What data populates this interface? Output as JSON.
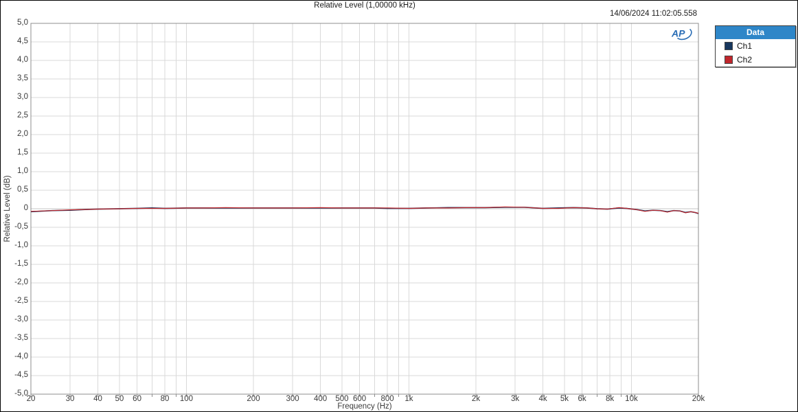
{
  "header": {
    "title": "Relative Level (1,00000 kHz)",
    "timestamp": "14/06/2024 11:02:05.558"
  },
  "logo": {
    "text": "AP",
    "color": "#2a6db5"
  },
  "legend": {
    "header": "Data",
    "header_bg": "#2e86c8",
    "header_text_color": "#ffffff",
    "items": [
      {
        "label": "Ch1",
        "color": "#17375e"
      },
      {
        "label": "Ch2",
        "color": "#c0262c"
      }
    ]
  },
  "colors": {
    "grid": "#d9d9d9",
    "zero_line": "#c6c6c6",
    "frame": "#8c8c8c",
    "tick": "#8c8c8c",
    "text": "#3a3a3a",
    "background": "#ffffff",
    "page_border": "#000000"
  },
  "chart_data": {
    "type": "line",
    "title": "Relative Level (1,00000 kHz)",
    "xlabel": "Frequency (Hz)",
    "ylabel": "Relative Level (dB)",
    "xscale": "log",
    "xlim": [
      20,
      20000
    ],
    "ylim": [
      -5,
      5
    ],
    "grid": true,
    "legend_position": "outside-right",
    "x_ticks": [
      {
        "value": 20,
        "label": "20"
      },
      {
        "value": 30,
        "label": "30"
      },
      {
        "value": 40,
        "label": "40"
      },
      {
        "value": 50,
        "label": "50"
      },
      {
        "value": 60,
        "label": "60"
      },
      {
        "value": 80,
        "label": "80"
      },
      {
        "value": 100,
        "label": "100"
      },
      {
        "value": 200,
        "label": "200"
      },
      {
        "value": 300,
        "label": "300"
      },
      {
        "value": 400,
        "label": "400"
      },
      {
        "value": 500,
        "label": "500"
      },
      {
        "value": 600,
        "label": "600"
      },
      {
        "value": 800,
        "label": "800"
      },
      {
        "value": 1000,
        "label": "1k"
      },
      {
        "value": 2000,
        "label": "2k"
      },
      {
        "value": 3000,
        "label": "3k"
      },
      {
        "value": 4000,
        "label": "4k"
      },
      {
        "value": 5000,
        "label": "5k"
      },
      {
        "value": 6000,
        "label": "6k"
      },
      {
        "value": 8000,
        "label": "8k"
      },
      {
        "value": 10000,
        "label": "10k"
      },
      {
        "value": 20000,
        "label": "20k"
      }
    ],
    "y_ticks": [
      {
        "value": 5.0,
        "label": "5,0"
      },
      {
        "value": 4.5,
        "label": "4,5"
      },
      {
        "value": 4.0,
        "label": "4,0"
      },
      {
        "value": 3.5,
        "label": "3,5"
      },
      {
        "value": 3.0,
        "label": "3,0"
      },
      {
        "value": 2.5,
        "label": "2,5"
      },
      {
        "value": 2.0,
        "label": "2,0"
      },
      {
        "value": 1.5,
        "label": "1,5"
      },
      {
        "value": 1.0,
        "label": "1,0"
      },
      {
        "value": 0.5,
        "label": "0,5"
      },
      {
        "value": 0.0,
        "label": "0"
      },
      {
        "value": -0.5,
        "label": "-0,5"
      },
      {
        "value": -1.0,
        "label": "-1,0"
      },
      {
        "value": -1.5,
        "label": "-1,5"
      },
      {
        "value": -2.0,
        "label": "-2,0"
      },
      {
        "value": -2.5,
        "label": "-2,5"
      },
      {
        "value": -3.0,
        "label": "-3,0"
      },
      {
        "value": -3.5,
        "label": "-3,5"
      },
      {
        "value": -4.0,
        "label": "-4,0"
      },
      {
        "value": -4.5,
        "label": "-4,5"
      },
      {
        "value": -5.0,
        "label": "-5,0"
      }
    ],
    "series": [
      {
        "name": "Ch1",
        "color": "#17375e",
        "x": [
          20,
          25,
          30,
          35,
          40,
          50,
          60,
          70,
          80,
          100,
          120,
          150,
          200,
          250,
          300,
          400,
          500,
          600,
          700,
          800,
          1000,
          1200,
          1500,
          1800,
          2200,
          2700,
          3300,
          4000,
          4700,
          5500,
          6300,
          7000,
          7800,
          8800,
          9500,
          10500,
          11500,
          12500,
          13500,
          14500,
          15500,
          16500,
          17500,
          18500,
          19300,
          20000
        ],
        "y": [
          -0.08,
          -0.05,
          -0.04,
          -0.02,
          -0.01,
          0,
          0.01,
          0.02,
          0.01,
          0.02,
          0.02,
          0.02,
          0.02,
          0.02,
          0.02,
          0.02,
          0.02,
          0.02,
          0.02,
          0.01,
          0.01,
          0.02,
          0.03,
          0.03,
          0.03,
          0.04,
          0.04,
          0.01,
          0.02,
          0.03,
          0.02,
          0,
          -0.01,
          0.02,
          0.01,
          -0.02,
          -0.06,
          -0.04,
          -0.05,
          -0.08,
          -0.05,
          -0.06,
          -0.1,
          -0.08,
          -0.1,
          -0.13
        ]
      },
      {
        "name": "Ch2",
        "color": "#c0262c",
        "x": [
          20,
          25,
          30,
          35,
          40,
          50,
          60,
          70,
          80,
          100,
          120,
          150,
          200,
          250,
          300,
          400,
          500,
          600,
          700,
          800,
          1000,
          1200,
          1500,
          1800,
          2200,
          2700,
          3300,
          4000,
          4700,
          5500,
          6300,
          7000,
          7800,
          8800,
          9500,
          10500,
          11500,
          12500,
          13500,
          14500,
          15500,
          16500,
          17500,
          18500,
          19300,
          20000
        ],
        "y": [
          -0.07,
          -0.05,
          -0.03,
          -0.02,
          -0.01,
          0,
          0.01,
          0.01,
          0.01,
          0.02,
          0.02,
          0.03,
          0.02,
          0.02,
          0.02,
          0.03,
          0.02,
          0.02,
          0.02,
          0.02,
          0.01,
          0.02,
          0.02,
          0.03,
          0.03,
          0.05,
          0.04,
          0.01,
          0.01,
          0.03,
          0.02,
          0,
          -0.01,
          0.03,
          0.01,
          -0.02,
          -0.07,
          -0.04,
          -0.05,
          -0.09,
          -0.05,
          -0.06,
          -0.11,
          -0.08,
          -0.1,
          -0.12
        ]
      }
    ]
  }
}
